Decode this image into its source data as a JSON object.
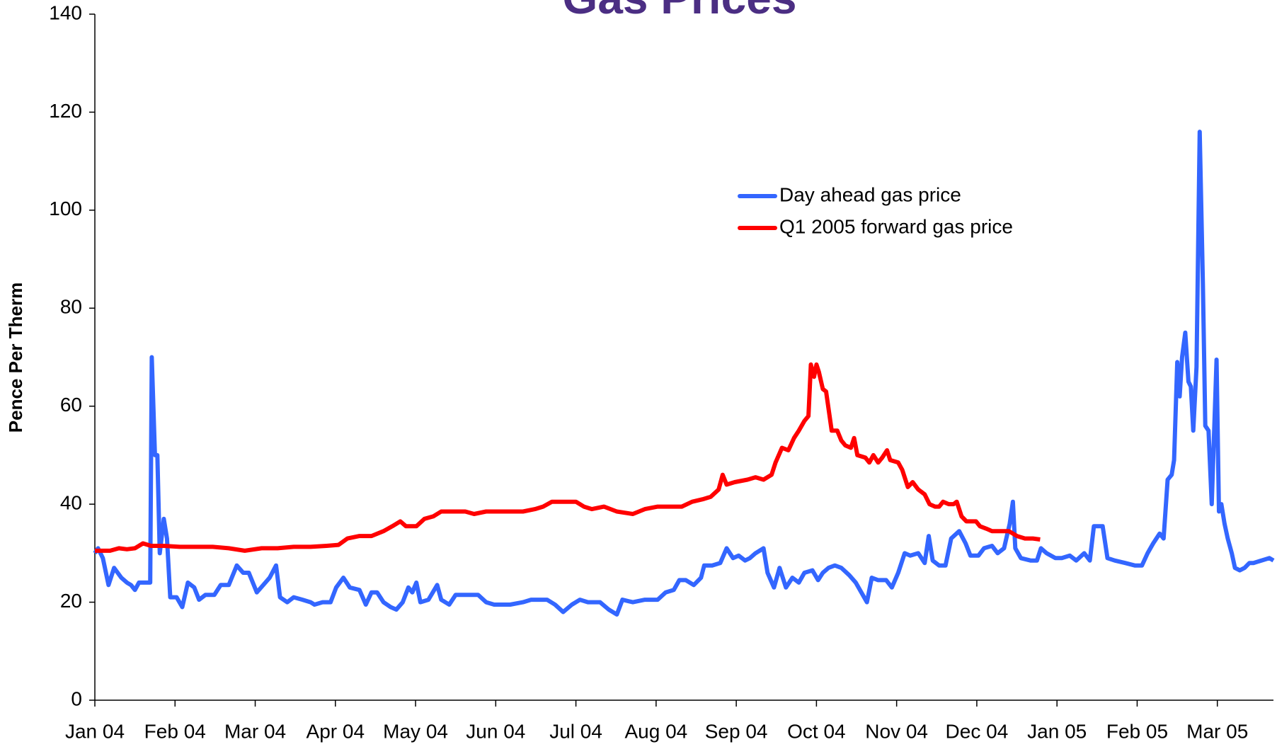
{
  "chart_data": {
    "type": "line",
    "title": "Gas Prices",
    "y_label": "Pence Per Therm",
    "xlim": [
      0,
      14.7
    ],
    "ylim": [
      0,
      140
    ],
    "xticks": [
      {
        "value": 0,
        "label": "Jan 04"
      },
      {
        "value": 1,
        "label": "Feb 04"
      },
      {
        "value": 2,
        "label": "Mar 04"
      },
      {
        "value": 3,
        "label": "Apr 04"
      },
      {
        "value": 4,
        "label": "May 04"
      },
      {
        "value": 5,
        "label": "Jun 04"
      },
      {
        "value": 6,
        "label": "Jul 04"
      },
      {
        "value": 7,
        "label": "Aug 04"
      },
      {
        "value": 8,
        "label": "Sep 04"
      },
      {
        "value": 9,
        "label": "Oct 04"
      },
      {
        "value": 10,
        "label": "Nov 04"
      },
      {
        "value": 11,
        "label": "Dec 04"
      },
      {
        "value": 12,
        "label": "Jan 05"
      },
      {
        "value": 13,
        "label": "Feb 05"
      },
      {
        "value": 14,
        "label": "Mar 05"
      }
    ],
    "yticks": [
      0,
      20,
      40,
      60,
      80,
      100,
      120,
      140
    ],
    "legend": "upper right",
    "series": [
      {
        "name": "Day ahead gas price",
        "color": "#3366ff",
        "x": [
          0,
          0.04,
          0.1,
          0.17,
          0.24,
          0.33,
          0.4,
          0.45,
          0.5,
          0.55,
          0.65,
          0.69,
          0.71,
          0.75,
          0.78,
          0.81,
          0.86,
          0.9,
          0.94,
          1.02,
          1.09,
          1.16,
          1.24,
          1.3,
          1.38,
          1.49,
          1.57,
          1.67,
          1.77,
          1.85,
          1.92,
          2.02,
          2.1,
          2.18,
          2.26,
          2.31,
          2.4,
          2.48,
          2.59,
          2.69,
          2.74,
          2.84,
          2.94,
          3.01,
          3.1,
          3.18,
          3.3,
          3.38,
          3.45,
          3.52,
          3.6,
          3.69,
          3.76,
          3.84,
          3.91,
          3.96,
          4.01,
          4.06,
          4.16,
          4.27,
          4.32,
          4.42,
          4.5,
          4.57,
          4.67,
          4.78,
          4.88,
          4.98,
          5.08,
          5.18,
          5.34,
          5.44,
          5.64,
          5.74,
          5.84,
          5.95,
          6.05,
          6.15,
          6.3,
          6.41,
          6.51,
          6.58,
          6.71,
          6.86,
          7.02,
          7.12,
          7.22,
          7.29,
          7.37,
          7.47,
          7.56,
          7.6,
          7.7,
          7.8,
          7.88,
          7.96,
          8.03,
          8.11,
          8.17,
          8.24,
          8.34,
          8.39,
          8.47,
          8.54,
          8.62,
          8.7,
          8.78,
          8.85,
          8.95,
          9.02,
          9.08,
          9.15,
          9.23,
          9.31,
          9.41,
          9.49,
          9.56,
          9.63,
          9.69,
          9.77,
          9.87,
          9.94,
          10.02,
          10.1,
          10.17,
          10.27,
          10.35,
          10.4,
          10.45,
          10.53,
          10.61,
          10.68,
          10.78,
          10.86,
          10.92,
          11.02,
          11.09,
          11.19,
          11.26,
          11.34,
          11.41,
          11.45,
          11.48,
          11.55,
          11.67,
          11.75,
          11.8,
          11.87,
          11.98,
          12.06,
          12.16,
          12.24,
          12.34,
          12.41,
          12.46,
          12.57,
          12.63,
          12.72,
          12.85,
          12.97,
          13.06,
          13.13,
          13.2,
          13.28,
          13.33,
          13.38,
          13.43,
          13.46,
          13.5,
          13.53,
          13.56,
          13.6,
          13.64,
          13.67,
          13.7,
          13.74,
          13.78,
          13.82,
          13.85,
          13.89,
          13.93,
          13.99,
          14.02,
          14.05,
          14.09,
          14.13,
          14.18,
          14.22,
          14.28,
          14.34,
          14.4,
          14.45,
          14.55,
          14.65,
          14.7
        ],
        "values": [
          30,
          31,
          29,
          23.5,
          27,
          25,
          24,
          23.5,
          22.5,
          24,
          24,
          24,
          70,
          50,
          50,
          30,
          37,
          33,
          21,
          21,
          19,
          24,
          23,
          20.5,
          21.5,
          21.5,
          23.5,
          23.5,
          27.5,
          26,
          26,
          22,
          23.5,
          25,
          27.5,
          21,
          20,
          21,
          20.5,
          20,
          19.5,
          20,
          20,
          23,
          25,
          23,
          22.5,
          19.5,
          22,
          22,
          20,
          19,
          18.5,
          20,
          23,
          22,
          24,
          20,
          20.5,
          23.5,
          20.5,
          19.5,
          21.5,
          21.5,
          21.5,
          21.5,
          20,
          19.5,
          19.5,
          19.5,
          20,
          20.5,
          20.5,
          19.5,
          18,
          19.5,
          20.5,
          20,
          20,
          18.5,
          17.5,
          20.5,
          20,
          20.5,
          20.5,
          22,
          22.5,
          24.5,
          24.5,
          23.5,
          25,
          27.5,
          27.5,
          28,
          31,
          29,
          29.5,
          28.5,
          29,
          30,
          31,
          26,
          23,
          27,
          23,
          25,
          24,
          26,
          26.5,
          24.5,
          26,
          27,
          27.5,
          27,
          25.5,
          24,
          22,
          20,
          25,
          24.5,
          24.5,
          23,
          26,
          30,
          29.5,
          30,
          28,
          33.5,
          28.5,
          27.5,
          27.5,
          33,
          34.5,
          32,
          29.5,
          29.5,
          31,
          31.5,
          30,
          31,
          36,
          40.5,
          31,
          29,
          28.5,
          28.5,
          31,
          30,
          29,
          29,
          29.5,
          28.5,
          30,
          28.5,
          35.5,
          35.5,
          29,
          28.5,
          28,
          27.5,
          27.5,
          30,
          32,
          34,
          33,
          45,
          46,
          49,
          69,
          62,
          70,
          75,
          65,
          64,
          55,
          68,
          116,
          85,
          56,
          55,
          40,
          69.5,
          38.5,
          40,
          36,
          33,
          30,
          27,
          26.5,
          27,
          28,
          28,
          28.5,
          29,
          28.5
        ]
      },
      {
        "name": "Q1 2005 forward gas price",
        "color": "#ff0000",
        "x": [
          0,
          0.09,
          0.19,
          0.3,
          0.4,
          0.5,
          0.6,
          0.7,
          0.86,
          1.06,
          1.26,
          1.47,
          1.67,
          1.87,
          2.08,
          2.28,
          2.48,
          2.69,
          2.89,
          3.04,
          3.15,
          3.3,
          3.45,
          3.6,
          3.71,
          3.81,
          3.88,
          4.01,
          4.11,
          4.22,
          4.32,
          4.47,
          4.62,
          4.73,
          4.88,
          5.03,
          5.18,
          5.34,
          5.49,
          5.59,
          5.7,
          5.85,
          6.0,
          6.1,
          6.2,
          6.35,
          6.51,
          6.71,
          6.86,
          7.02,
          7.17,
          7.32,
          7.45,
          7.58,
          7.68,
          7.78,
          7.83,
          7.88,
          7.98,
          8.14,
          8.24,
          8.34,
          8.44,
          8.49,
          8.57,
          8.65,
          8.72,
          8.78,
          8.85,
          8.9,
          8.93,
          8.97,
          9.0,
          9.03,
          9.08,
          9.12,
          9.19,
          9.26,
          9.31,
          9.36,
          9.43,
          9.47,
          9.51,
          9.61,
          9.66,
          9.71,
          9.77,
          9.82,
          9.88,
          9.92,
          10.02,
          10.07,
          10.14,
          10.2,
          10.27,
          10.35,
          10.41,
          10.48,
          10.53,
          10.58,
          10.65,
          10.71,
          10.75,
          10.81,
          10.87,
          10.99,
          11.04,
          11.12,
          11.19,
          11.29,
          11.4,
          11.5,
          11.6,
          11.7,
          11.79
        ],
        "values": [
          30.5,
          30.5,
          30.5,
          31,
          30.8,
          31,
          32,
          31.5,
          31.5,
          31.3,
          31.3,
          31.3,
          31,
          30.5,
          31,
          31,
          31.3,
          31.3,
          31.5,
          31.7,
          33,
          33.5,
          33.5,
          34.5,
          35.5,
          36.5,
          35.5,
          35.5,
          37,
          37.5,
          38.5,
          38.5,
          38.5,
          38,
          38.5,
          38.5,
          38.5,
          38.5,
          39,
          39.5,
          40.5,
          40.5,
          40.5,
          39.5,
          39,
          39.5,
          38.5,
          38,
          39,
          39.5,
          39.5,
          39.5,
          40.5,
          41,
          41.5,
          43,
          46,
          44,
          44.5,
          45,
          45.5,
          45,
          46,
          48.5,
          51.5,
          51,
          53.5,
          55,
          57,
          58,
          68.5,
          66,
          68.5,
          67,
          63.5,
          63,
          55,
          55,
          53,
          52,
          51.5,
          53.5,
          50,
          49.5,
          48.5,
          50,
          48.5,
          49.5,
          51,
          49,
          48.5,
          47,
          43.5,
          44.5,
          43,
          42,
          40,
          39.5,
          39.5,
          40.5,
          40,
          40,
          40.5,
          37.5,
          36.5,
          36.5,
          35.5,
          35,
          34.5,
          34.5,
          34.5,
          33.5,
          33,
          33,
          32.8
        ]
      }
    ]
  }
}
